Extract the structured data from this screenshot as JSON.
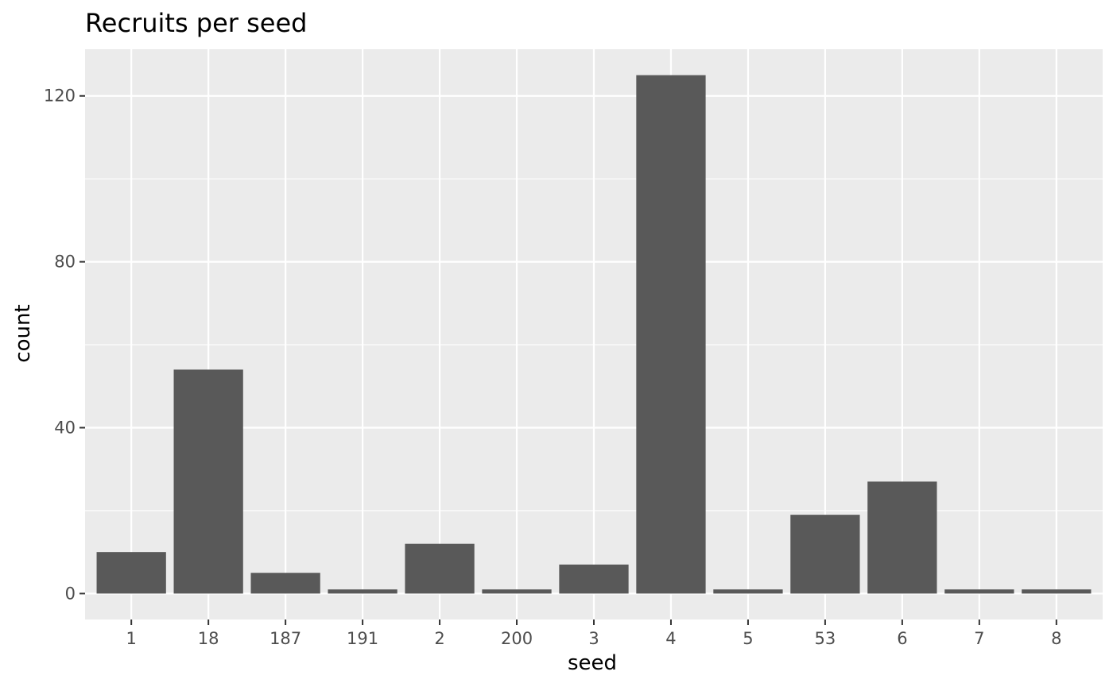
{
  "chart_data": {
    "type": "bar",
    "title": "Recruits per seed",
    "xlabel": "seed",
    "ylabel": "count",
    "categories": [
      "1",
      "18",
      "187",
      "191",
      "2",
      "200",
      "3",
      "4",
      "5",
      "53",
      "6",
      "7",
      "8"
    ],
    "values": [
      10,
      54,
      5,
      1,
      12,
      1,
      7,
      125,
      1,
      19,
      27,
      1,
      1
    ],
    "ylim": [
      -6.25,
      131.25
    ],
    "yticks": [
      0,
      40,
      80,
      120
    ],
    "yticks_minor": [
      20,
      60,
      100
    ],
    "grid": true,
    "legend": "none",
    "colors": {
      "bar": "#595959",
      "panel": "#ebebeb",
      "grid": "#ffffff",
      "tick_text": "#4d4d4d",
      "tick_mark": "#333333"
    }
  }
}
